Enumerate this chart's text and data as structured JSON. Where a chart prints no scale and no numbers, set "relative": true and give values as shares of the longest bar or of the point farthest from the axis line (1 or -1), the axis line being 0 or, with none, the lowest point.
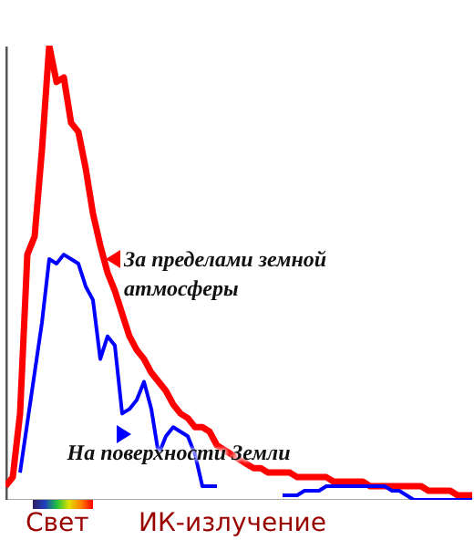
{
  "chart_data": {
    "type": "line",
    "relative": true,
    "categories": [
      null,
      null,
      null,
      null,
      null,
      null,
      null,
      null,
      null,
      null,
      null,
      null,
      null,
      null,
      null,
      null,
      null,
      null,
      null,
      null,
      null,
      null,
      null,
      null,
      null,
      null,
      null,
      null,
      null,
      null,
      null,
      null,
      null,
      null,
      null,
      null,
      null,
      null,
      null,
      null,
      null,
      null,
      null,
      null,
      null,
      null,
      null,
      null,
      null,
      null,
      null,
      null,
      null,
      null,
      null,
      null,
      null,
      null,
      null,
      null,
      null,
      null,
      null,
      null,
      null
    ],
    "series": [
      {
        "color": "#ff0000",
        "values": [
          0.03,
          0.05,
          0.19,
          0.54,
          0.58,
          0.77,
          1,
          0.92,
          0.93,
          0.83,
          0.81,
          0.73,
          0.63,
          0.56,
          0.5,
          0.46,
          0.41,
          0.36,
          0.33,
          0.31,
          0.28,
          0.26,
          0.24,
          0.21,
          0.19,
          0.18,
          0.16,
          0.16,
          0.15,
          0.12,
          0.11,
          0.1,
          0.09,
          0.08,
          0.07,
          0.07,
          0.06,
          0.06,
          0.06,
          0.06,
          0.05,
          0.05,
          0.05,
          0.05,
          0.05,
          0.04,
          0.04,
          0.04,
          0.04,
          0.04,
          0.03,
          0.03,
          0.03,
          0.03,
          0.03,
          0.03,
          0.03,
          0.03,
          0.02,
          0.02,
          0.02,
          0.02,
          0.01,
          0.01,
          0.01
        ]
      },
      {
        "color": "#0000ff",
        "values": [
          null,
          null,
          0.06,
          0.17,
          0.28,
          0.39,
          0.53,
          0.52,
          0.54,
          0.53,
          0.52,
          0.47,
          0.44,
          0.31,
          0.36,
          0.34,
          0.19,
          0.2,
          0.22,
          0.26,
          0.2,
          0.1,
          0.14,
          0.16,
          0.15,
          0.14,
          0.1,
          0.03,
          0.03,
          0.03,
          null,
          null,
          null,
          null,
          null,
          null,
          null,
          null,
          0.01,
          0.01,
          0.01,
          0.02,
          0.02,
          0.02,
          0.03,
          0.03,
          0.03,
          0.03,
          0.03,
          0.03,
          0.03,
          0.03,
          0.03,
          0.02,
          0.02,
          0.01,
          0,
          0,
          0,
          0,
          0,
          0,
          0,
          0,
          0
        ]
      }
    ],
    "annotations": [
      "За пределами земной атмосферы",
      "На поверхности Земли",
      "Свет",
      "ИК-излучение"
    ],
    "grid": false
  }
}
